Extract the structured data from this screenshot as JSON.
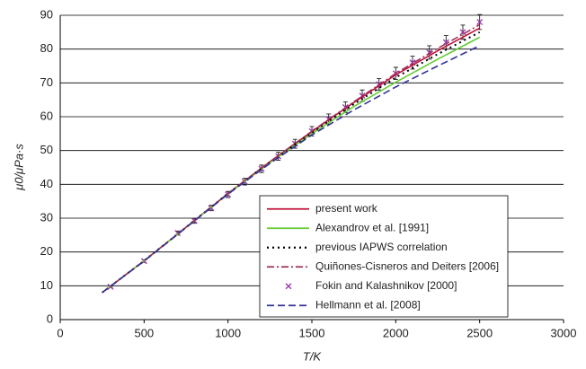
{
  "chart_data": {
    "type": "line",
    "xlabel": "T/K",
    "ylabel": "μ0/μPa·s",
    "xlim": [
      0,
      3000
    ],
    "xticks": [
      0,
      500,
      1000,
      1500,
      2000,
      2500,
      3000
    ],
    "ylim": [
      0,
      90
    ],
    "yticks": [
      0,
      10,
      20,
      30,
      40,
      50,
      60,
      70,
      80,
      90
    ],
    "grid": true,
    "legend_position": "lower right",
    "series": [
      {
        "name": "present work",
        "color": "#c0143c",
        "style": "solid",
        "x": [
          250,
          500,
          750,
          1000,
          1250,
          1500,
          1750,
          2000,
          2250,
          2500
        ],
        "values": [
          8.0,
          17.4,
          27.3,
          37.3,
          46.7,
          55.6,
          64.2,
          72.4,
          79.5,
          86.2
        ]
      },
      {
        "name": "Alexandrov et al. [1991]",
        "color": "#66cc33",
        "style": "solid",
        "x": [
          250,
          500,
          750,
          1000,
          1250,
          1500,
          1750,
          2000,
          2250,
          2500
        ],
        "values": [
          8.0,
          17.4,
          27.3,
          37.2,
          46.4,
          55.0,
          63.0,
          70.2,
          77.0,
          83.5
        ]
      },
      {
        "name": "previous IAPWS correlation",
        "color": "#000000",
        "style": "dotted",
        "x": [
          250,
          500,
          750,
          1000,
          1250,
          1500,
          1750,
          2000,
          2250,
          2500
        ],
        "values": [
          8.0,
          17.4,
          27.3,
          37.3,
          46.6,
          55.3,
          63.7,
          71.6,
          78.5,
          85.0
        ]
      },
      {
        "name": "Quiñones-Cisneros and Deiters [2006]",
        "color": "#a0305a",
        "style": "dashdot",
        "x": [
          250,
          500,
          750,
          1000,
          1250,
          1500,
          1750,
          2000,
          2250,
          2500
        ],
        "values": [
          8.0,
          17.4,
          27.3,
          37.3,
          46.7,
          55.7,
          64.4,
          72.8,
          80.2,
          87.2
        ]
      },
      {
        "name": "Fokin and Kalashnikov [2000]",
        "color": "#9933aa",
        "style": "markers",
        "x": [
          300,
          500,
          700,
          800,
          900,
          1000,
          1100,
          1200,
          1300,
          1400,
          1500,
          1600,
          1700,
          1800,
          1900,
          2000,
          2100,
          2200,
          2300,
          2400,
          2500
        ],
        "values": [
          9.7,
          17.3,
          25.6,
          29.2,
          33.0,
          37.0,
          40.8,
          44.6,
          48.3,
          52.0,
          55.7,
          59.3,
          62.8,
          66.2,
          69.6,
          72.8,
          76.0,
          79.0,
          82.0,
          85.0,
          88.0
        ],
        "errors": [
          0.2,
          0.4,
          0.6,
          0.7,
          0.8,
          0.9,
          1.0,
          1.1,
          1.2,
          1.3,
          1.4,
          1.5,
          1.6,
          1.7,
          1.7,
          1.8,
          1.9,
          2.0,
          2.0,
          2.1,
          2.2
        ]
      },
      {
        "name": "Hellmann et al. [2008]",
        "color": "#333399",
        "style": "dashed",
        "x": [
          250,
          500,
          750,
          1000,
          1250,
          1500,
          1750,
          2000,
          2250,
          2500
        ],
        "values": [
          8.0,
          17.3,
          27.2,
          37.1,
          46.2,
          54.6,
          62.0,
          68.8,
          75.0,
          81.0
        ]
      }
    ]
  }
}
